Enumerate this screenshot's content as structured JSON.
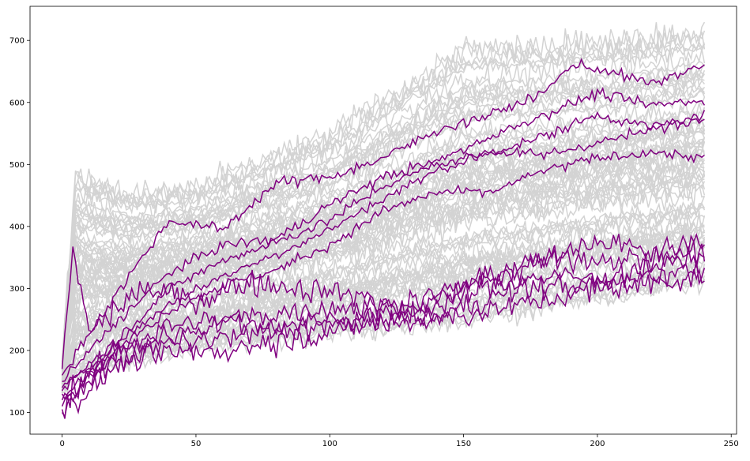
{
  "chart_data": {
    "type": "line",
    "title": "",
    "xlabel": "",
    "ylabel": "",
    "xlim": [
      -12,
      252
    ],
    "ylim": [
      65,
      755
    ],
    "x_ticks": [
      "0",
      "50",
      "100",
      "150",
      "200",
      "250"
    ],
    "y_ticks": [
      "100",
      "200",
      "300",
      "400",
      "500",
      "600",
      "700"
    ],
    "grid": false,
    "legend": "none",
    "n_points": 241,
    "colors": {
      "background_series": "#d3d3d3",
      "highlight_series": "#800080"
    },
    "background_series_count": 80,
    "background_series_envelope": {
      "x": [
        0,
        5,
        25,
        50,
        100,
        150,
        200,
        240
      ],
      "min": [
        130,
        160,
        175,
        200,
        220,
        240,
        275,
        300
      ],
      "max": [
        190,
        495,
        460,
        470,
        560,
        700,
        710,
        730
      ]
    },
    "highlighted_series": [
      {
        "x": [
          0,
          5,
          20,
          40,
          60,
          80,
          100,
          120,
          140,
          160,
          180,
          190,
          200,
          220,
          240
        ],
        "values": [
          160,
          195,
          290,
          410,
          395,
          470,
          480,
          510,
          555,
          580,
          615,
          660,
          655,
          630,
          660
        ]
      },
      {
        "x": [
          0,
          20,
          40,
          60,
          80,
          100,
          120,
          140,
          160,
          180,
          200,
          220,
          240
        ],
        "values": [
          150,
          245,
          325,
          370,
          380,
          435,
          480,
          505,
          545,
          580,
          615,
          595,
          605
        ]
      },
      {
        "x": [
          0,
          20,
          40,
          60,
          80,
          100,
          120,
          140,
          160,
          180,
          200,
          220,
          240
        ],
        "values": [
          140,
          215,
          300,
          345,
          375,
          410,
          465,
          500,
          520,
          545,
          580,
          560,
          580
        ]
      },
      {
        "x": [
          0,
          20,
          40,
          60,
          80,
          100,
          120,
          140,
          160,
          180,
          200,
          220,
          240
        ],
        "values": [
          135,
          210,
          275,
          320,
          355,
          395,
          445,
          490,
          520,
          515,
          535,
          555,
          575
        ]
      },
      {
        "x": [
          0,
          20,
          40,
          60,
          80,
          100,
          120,
          140,
          160,
          180,
          200,
          220,
          240
        ],
        "values": [
          130,
          200,
          265,
          305,
          330,
          370,
          425,
          455,
          455,
          490,
          510,
          520,
          510
        ]
      },
      {
        "x": [
          0,
          4,
          10,
          30,
          50,
          70,
          90,
          110,
          130,
          150,
          170,
          200,
          220,
          240
        ],
        "values": [
          170,
          360,
          230,
          300,
          280,
          310,
          300,
          290,
          265,
          300,
          330,
          380,
          355,
          380
        ]
      },
      {
        "x": [
          0,
          20,
          40,
          60,
          80,
          100,
          120,
          140,
          160,
          180,
          200,
          220,
          240
        ],
        "values": [
          120,
          200,
          240,
          250,
          260,
          270,
          270,
          290,
          320,
          345,
          350,
          345,
          360
        ]
      },
      {
        "x": [
          0,
          20,
          40,
          60,
          80,
          100,
          120,
          140,
          160,
          180,
          200,
          220,
          240
        ],
        "values": [
          110,
          195,
          225,
          245,
          240,
          250,
          255,
          270,
          305,
          320,
          315,
          335,
          355
        ]
      },
      {
        "x": [
          0,
          20,
          40,
          60,
          80,
          100,
          120,
          140,
          160,
          180,
          200,
          220,
          240
        ],
        "values": [
          105,
          185,
          210,
          220,
          230,
          240,
          250,
          255,
          285,
          305,
          305,
          320,
          335
        ]
      },
      {
        "x": [
          0,
          20,
          40,
          60,
          80,
          100,
          120,
          140,
          160,
          180,
          200,
          220,
          240
        ],
        "values": [
          100,
          175,
          195,
          200,
          215,
          230,
          245,
          250,
          265,
          280,
          300,
          310,
          320
        ]
      }
    ]
  }
}
